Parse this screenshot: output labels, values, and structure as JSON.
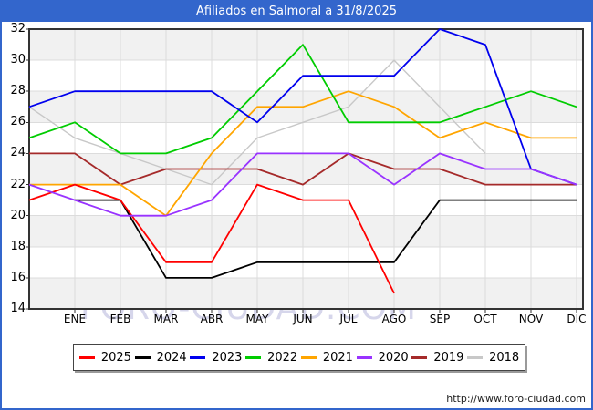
{
  "window": {
    "title": "Afiliados en Salmoral a 31/8/2025",
    "watermark": "FORO-CIUDAD.COM",
    "url": "http://www.foro-ciudad.com"
  },
  "theme": {
    "titlebar_color": "#3366cc",
    "band_color": "#f1f1f1",
    "grid_color": "#dcdcdc",
    "frame_color": "#333333"
  },
  "chart_data": {
    "type": "line",
    "title": "Afiliados en Salmoral a 31/8/2025",
    "x_categories": [
      "ENE",
      "FEB",
      "MAR",
      "ABR",
      "MAY",
      "JUN",
      "JUL",
      "AGO",
      "SEP",
      "OCT",
      "NOV",
      "DIC"
    ],
    "ylim": [
      14,
      32
    ],
    "yticks": [
      14,
      16,
      18,
      20,
      22,
      24,
      26,
      28,
      30,
      32
    ],
    "grid": true,
    "legend_position": "bottom",
    "series_note": "start = unlabeled point at plot left edge; values = ENE..DIC; null = not plotted",
    "series": [
      {
        "name": "2025",
        "color": "#ff0000",
        "start": 21,
        "values": [
          22,
          21,
          17,
          17,
          22,
          21,
          21,
          15,
          null,
          null,
          null,
          null
        ]
      },
      {
        "name": "2024",
        "color": "#000000",
        "start": null,
        "values": [
          21,
          21,
          16,
          16,
          17,
          17,
          17,
          17,
          21,
          21,
          21,
          21
        ]
      },
      {
        "name": "2023",
        "color": "#0000ee",
        "start": 27,
        "values": [
          28,
          28,
          28,
          28,
          26,
          29,
          29,
          29,
          32,
          31,
          23,
          22
        ]
      },
      {
        "name": "2022",
        "color": "#00cc00",
        "start": 25,
        "values": [
          26,
          24,
          24,
          25,
          28,
          31,
          26,
          26,
          26,
          27,
          28,
          27
        ]
      },
      {
        "name": "2021",
        "color": "#ffa500",
        "start": 22,
        "values": [
          22,
          22,
          20,
          24,
          27,
          27,
          28,
          27,
          25,
          26,
          25,
          25
        ]
      },
      {
        "name": "2020",
        "color": "#9933ff",
        "start": 22,
        "values": [
          21,
          20,
          20,
          21,
          24,
          24,
          24,
          22,
          24,
          23,
          23,
          22
        ]
      },
      {
        "name": "2019",
        "color": "#a52a2a",
        "start": 24,
        "values": [
          24,
          22,
          23,
          23,
          23,
          22,
          24,
          23,
          23,
          22,
          22,
          22
        ]
      },
      {
        "name": "2018",
        "color": "#c8c8c8",
        "start": 27,
        "values": [
          25,
          24,
          23,
          22,
          25,
          26,
          27,
          30,
          27,
          24,
          null,
          null
        ]
      }
    ]
  }
}
